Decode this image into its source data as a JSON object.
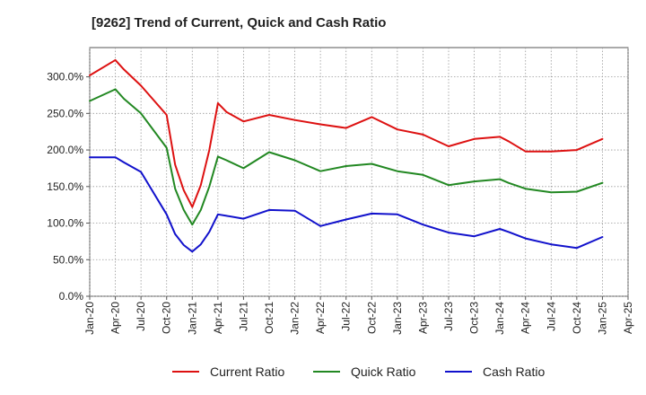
{
  "chart_data": {
    "type": "line",
    "title": "[9262]  Trend of Current, Quick and Cash Ratio",
    "xlabel": "",
    "ylabel": "",
    "ylim": [
      0,
      340
    ],
    "yticks": [
      0,
      50,
      100,
      150,
      200,
      250,
      300
    ],
    "ytick_labels": [
      "0.0%",
      "50.0%",
      "100.0%",
      "150.0%",
      "200.0%",
      "250.0%",
      "300.0%"
    ],
    "xlim": [
      0,
      63
    ],
    "xticks": [
      0,
      3,
      6,
      9,
      12,
      15,
      18,
      21,
      24,
      27,
      30,
      33,
      36,
      39,
      42,
      45,
      48,
      51,
      54,
      57,
      60,
      63
    ],
    "xtick_labels": [
      "Jan-20",
      "Apr-20",
      "Jul-20",
      "Oct-20",
      "Jan-21",
      "Apr-21",
      "Jul-21",
      "Oct-21",
      "Jan-22",
      "Apr-22",
      "Jul-22",
      "Oct-22",
      "Jan-23",
      "Apr-23",
      "Jul-23",
      "Oct-23",
      "Jan-24",
      "Apr-24",
      "Jul-24",
      "Oct-24",
      "Jan-25",
      "Apr-25"
    ],
    "grid": true,
    "legend_position": "bottom",
    "series": [
      {
        "name": "Current Ratio",
        "color": "#dd1111",
        "x": [
          0,
          3,
          4,
          6,
          9,
          10,
          11,
          12,
          13,
          14,
          15,
          16,
          18,
          21,
          24,
          27,
          30,
          33,
          36,
          39,
          42,
          45,
          48,
          49,
          51,
          54,
          57,
          60
        ],
        "values": [
          302,
          323,
          310,
          288,
          248,
          180,
          145,
          122,
          152,
          200,
          264,
          252,
          239,
          248,
          241,
          235,
          230,
          245,
          228,
          221,
          205,
          215,
          218,
          212,
          198,
          198,
          200,
          215
        ]
      },
      {
        "name": "Quick Ratio",
        "color": "#228822",
        "x": [
          0,
          3,
          4,
          6,
          9,
          10,
          11,
          12,
          13,
          14,
          15,
          16,
          18,
          21,
          24,
          27,
          30,
          33,
          36,
          39,
          42,
          45,
          48,
          49,
          51,
          54,
          57,
          60
        ],
        "values": [
          267,
          283,
          270,
          250,
          203,
          147,
          118,
          98,
          118,
          150,
          191,
          186,
          175,
          197,
          186,
          171,
          178,
          181,
          171,
          166,
          152,
          157,
          160,
          155,
          147,
          142,
          143,
          155
        ]
      },
      {
        "name": "Cash Ratio",
        "color": "#1111cc",
        "x": [
          0,
          3,
          4,
          6,
          9,
          10,
          11,
          12,
          13,
          14,
          15,
          16,
          18,
          21,
          24,
          27,
          30,
          33,
          36,
          39,
          42,
          45,
          48,
          49,
          51,
          54,
          57,
          60
        ],
        "values": [
          190,
          190,
          183,
          170,
          112,
          85,
          70,
          61,
          71,
          88,
          112,
          110,
          106,
          118,
          117,
          96,
          105,
          113,
          112,
          98,
          87,
          82,
          92,
          88,
          79,
          71,
          66,
          81
        ]
      }
    ]
  }
}
